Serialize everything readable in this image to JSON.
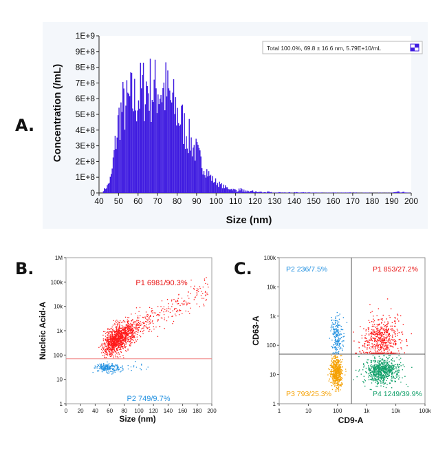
{
  "panels": {
    "a_label": "A.",
    "b_label": "B.",
    "c_label": "C."
  },
  "chart_data": [
    {
      "type": "bar",
      "panel": "A",
      "xlabel": "Size (nm)",
      "ylabel": "Concentration (/mL)",
      "xlim": [
        40,
        200
      ],
      "ylim": [
        0,
        1000000000
      ],
      "xticks": [
        40,
        50,
        60,
        70,
        80,
        90,
        100,
        110,
        120,
        130,
        140,
        150,
        160,
        170,
        180,
        190,
        200
      ],
      "yticks": [
        0,
        100000000,
        200000000,
        300000000,
        400000000,
        500000000,
        600000000,
        700000000,
        800000000,
        900000000,
        1000000000
      ],
      "ytick_labels": [
        "0",
        "1E+8",
        "2E+8",
        "3E+8",
        "4E+8",
        "5E+8",
        "6E+8",
        "7E+8",
        "8E+8",
        "9E+8",
        "1E+9"
      ],
      "legend": {
        "text": "Total  100.0%,  69.8 ± 16.6 nm,  5.79E+10/mL",
        "position": "top-right"
      },
      "color": "#3f1be0",
      "x": [
        42,
        44,
        46,
        48,
        50,
        52,
        54,
        56,
        58,
        60,
        62,
        64,
        66,
        68,
        70,
        72,
        74,
        76,
        78,
        80,
        82,
        84,
        86,
        88,
        90,
        92,
        94,
        96,
        98,
        100,
        102,
        104,
        106,
        108,
        110,
        112,
        114,
        116,
        118,
        120,
        125,
        130,
        140,
        150,
        160,
        170,
        180,
        190,
        193,
        200
      ],
      "values": [
        20000000,
        50000000,
        120000000,
        350000000,
        560000000,
        640000000,
        650000000,
        700000000,
        690000000,
        730000000,
        760000000,
        800000000,
        780000000,
        760000000,
        790000000,
        770000000,
        760000000,
        700000000,
        650000000,
        600000000,
        540000000,
        470000000,
        410000000,
        350000000,
        300000000,
        230000000,
        190000000,
        140000000,
        100000000,
        80000000,
        60000000,
        45000000,
        35000000,
        28000000,
        22000000,
        18000000,
        14000000,
        12000000,
        10000000,
        8000000,
        6000000,
        4000000,
        3000000,
        2000000,
        2000000,
        2000000,
        1000000,
        1000000,
        8000000,
        0
      ]
    },
    {
      "type": "scatter",
      "panel": "B",
      "xlabel": "Size (nm)",
      "ylabel": "Nucleic Acid-A",
      "xlim": [
        0,
        200
      ],
      "ylim": [
        1,
        1000000
      ],
      "yscale": "log",
      "xticks": [
        0,
        20,
        40,
        60,
        80,
        100,
        120,
        140,
        160,
        180,
        200
      ],
      "yticks": [
        1,
        10,
        100,
        1000,
        10000,
        100000,
        1000000
      ],
      "ytick_labels": [
        "1",
        "10",
        "100",
        "1k",
        "10k",
        "100k",
        "1M"
      ],
      "threshold_y": 70,
      "gates": [
        {
          "name": "P1 6981/90.3%",
          "color": "#ff1a1a",
          "count": 6981,
          "percent": 90.3
        },
        {
          "name": "P2 749/9.7%",
          "color": "#1f8fe0",
          "count": 749,
          "percent": 9.7
        }
      ]
    },
    {
      "type": "scatter",
      "panel": "C",
      "xlabel": "CD9-A",
      "ylabel": "CD63-A",
      "xscale": "log",
      "yscale": "log",
      "xlim": [
        1,
        100000
      ],
      "ylim": [
        1,
        100000
      ],
      "xticks": [
        1,
        10,
        100,
        1000,
        10000,
        100000
      ],
      "xtick_labels": [
        "1",
        "10",
        "100",
        "1k",
        "10k",
        "100k"
      ],
      "yticks": [
        1,
        10,
        100,
        1000,
        10000,
        100000
      ],
      "ytick_labels": [
        "1",
        "10",
        "100",
        "1k",
        "10k",
        "100k"
      ],
      "quadrant_x": 300,
      "quadrant_y": 50,
      "gates": [
        {
          "name": "P1 853/27.2%",
          "color": "#ff1a1a",
          "count": 853,
          "percent": 27.2,
          "position": "top-right"
        },
        {
          "name": "P2 236/7.5%",
          "color": "#1f8fe0",
          "count": 236,
          "percent": 7.5,
          "position": "top-left"
        },
        {
          "name": "P3 793/25.3%",
          "color": "#f5a000",
          "count": 793,
          "percent": 25.3,
          "position": "bottom-left"
        },
        {
          "name": "P4 1249/39.9%",
          "color": "#12a06a",
          "count": 1249,
          "percent": 39.9,
          "position": "bottom-right"
        }
      ]
    }
  ]
}
